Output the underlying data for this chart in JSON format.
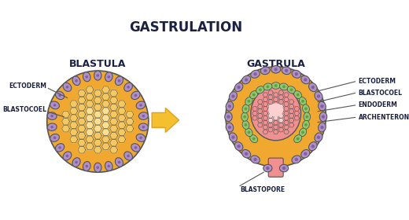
{
  "title": "GASTRULATION",
  "blastula_label": "BLASTULA",
  "gastrula_label": "GASTRULA",
  "bg_color": "#ffffff",
  "ectoderm_color": "#b090c8",
  "ectoderm_dark": "#8060a0",
  "ectoderm_outline": "#555555",
  "orange_outer": "#f0a830",
  "orange_inner": "#f5c860",
  "orange_light": "#fae090",
  "endoderm_color": "#90c870",
  "endoderm_dark": "#60a040",
  "archenteron_color": "#f09090",
  "archenteron_light": "#fcd0d0",
  "arrow_color": "#f5c030",
  "arrow_outline": "#e0a020",
  "text_color": "#1a2040",
  "line_color": "#555555"
}
